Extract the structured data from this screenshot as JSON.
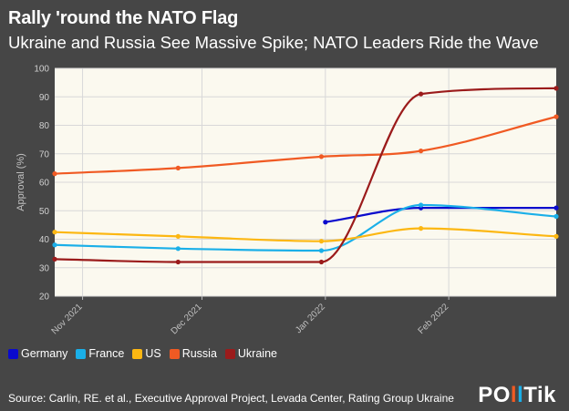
{
  "title": "Rally 'round the NATO Flag",
  "subtitle": "Ukraine and Russia See Massive Spike; NATO Leaders Ride the Wave",
  "source": "Source: Carlin, RE. et al., Executive Approval Project, Levada Center, Rating Group Ukraine",
  "logo": "POLITIK",
  "colors": {
    "background": "#464646",
    "plot_background": "#FBF9EF",
    "gridline": "#D8D8D8"
  },
  "chart_data": {
    "type": "line",
    "title": "Rally 'round the NATO Flag",
    "subtitle": "Ukraine and Russia See Massive Spike; NATO Leaders Ride the Wave",
    "xlabel": "",
    "ylabel": "Approval (%)",
    "ylim": [
      20,
      100
    ],
    "yticks": [
      20,
      30,
      40,
      50,
      60,
      70,
      80,
      90,
      100
    ],
    "xlim": [
      "2021-10-25",
      "2022-02-28"
    ],
    "xticks": [
      {
        "date": "2021-11-01",
        "label": "Nov 2021"
      },
      {
        "date": "2021-12-01",
        "label": "Dec 2021"
      },
      {
        "date": "2022-01-01",
        "label": "Jan 2022"
      },
      {
        "date": "2022-02-01",
        "label": "Feb 2022"
      }
    ],
    "grid": true,
    "legend": "bottom-left",
    "series": [
      {
        "name": "Germany",
        "color": "#0A0ACD",
        "points": [
          {
            "x": "2022-01-01",
            "y": 46
          },
          {
            "x": "2022-01-25",
            "y": 51
          },
          {
            "x": "2022-02-28",
            "y": 51
          }
        ]
      },
      {
        "name": "France",
        "color": "#1AAFE8",
        "points": [
          {
            "x": "2021-10-25",
            "y": 38
          },
          {
            "x": "2021-11-25",
            "y": 36.7
          },
          {
            "x": "2021-12-31",
            "y": 36
          },
          {
            "x": "2022-01-25",
            "y": 52
          },
          {
            "x": "2022-02-28",
            "y": 48
          }
        ]
      },
      {
        "name": "US",
        "color": "#FCB712",
        "points": [
          {
            "x": "2021-10-25",
            "y": 42.5
          },
          {
            "x": "2021-11-25",
            "y": 41
          },
          {
            "x": "2021-12-31",
            "y": 39.3
          },
          {
            "x": "2022-01-25",
            "y": 43.8
          },
          {
            "x": "2022-02-28",
            "y": 41
          }
        ]
      },
      {
        "name": "Russia",
        "color": "#F05A23",
        "points": [
          {
            "x": "2021-10-25",
            "y": 63
          },
          {
            "x": "2021-11-25",
            "y": 65
          },
          {
            "x": "2021-12-31",
            "y": 69
          },
          {
            "x": "2022-01-25",
            "y": 71
          },
          {
            "x": "2022-02-28",
            "y": 83
          }
        ]
      },
      {
        "name": "Ukraine",
        "color": "#9B1B1B",
        "points": [
          {
            "x": "2021-10-25",
            "y": 33
          },
          {
            "x": "2021-11-25",
            "y": 32
          },
          {
            "x": "2021-12-31",
            "y": 32
          },
          {
            "x": "2022-01-25",
            "y": 91
          },
          {
            "x": "2022-02-28",
            "y": 93
          }
        ]
      }
    ]
  }
}
